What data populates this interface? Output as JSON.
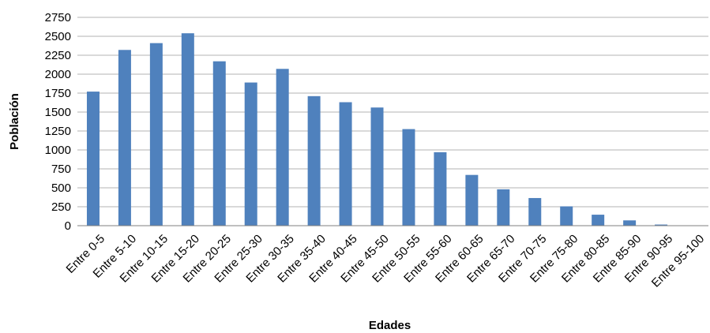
{
  "chart_data": {
    "type": "bar",
    "title": "",
    "xlabel": "Edades",
    "ylabel": "Población",
    "ylim": [
      0,
      2750
    ],
    "yticks": [
      0,
      250,
      500,
      750,
      1000,
      1250,
      1500,
      1750,
      2000,
      2250,
      2500,
      2750
    ],
    "grid": true,
    "legend": "none",
    "bar_color": "#4f81bd",
    "categories": [
      "Entre 0-5",
      "Entre 5-10",
      "Entre 10-15",
      "Entre 15-20",
      "Entre 20-25",
      "Entre 25-30",
      "Entre 30-35",
      "Entre 35-40",
      "Entre 40-45",
      "Entre 45-50",
      "Entre 50-55",
      "Entre 55-60",
      "Entre 60-65",
      "Entre 65-70",
      "Entre 70-75",
      "Entre 75-80",
      "Entre 80-85",
      "Entre 85-90",
      "Entre 90-95",
      "Entre 95-100"
    ],
    "values": [
      1770,
      2320,
      2410,
      2540,
      2170,
      1890,
      2070,
      1710,
      1630,
      1560,
      1275,
      970,
      670,
      480,
      365,
      255,
      145,
      70,
      15,
      0
    ]
  }
}
